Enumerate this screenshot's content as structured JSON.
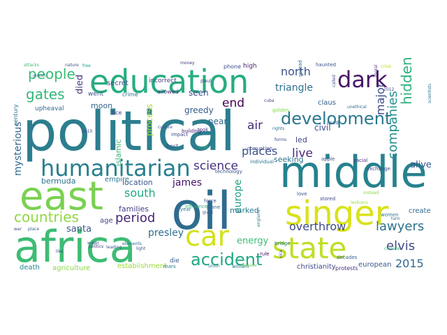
{
  "words": [
    {
      "text": "political",
      "color": "#2c7e8e"
    },
    {
      "text": "middle",
      "color": "#26828e"
    },
    {
      "text": "east",
      "color": "#7ad151"
    },
    {
      "text": "oil",
      "color": "#2f6c8e"
    },
    {
      "text": "africa",
      "color": "#3dbc74"
    },
    {
      "text": "education",
      "color": "#27ad81"
    },
    {
      "text": "singer",
      "color": "#d8e219"
    },
    {
      "text": "state",
      "color": "#bddf26"
    },
    {
      "text": "car",
      "color": "#d2e21b"
    },
    {
      "text": "humanitarian",
      "color": "#277f8e"
    },
    {
      "text": "dark",
      "color": "#481668"
    },
    {
      "text": "development",
      "color": "#2a788e"
    },
    {
      "text": "accident",
      "color": "#21a685"
    },
    {
      "text": "people",
      "color": "#3aba76"
    },
    {
      "text": "gates",
      "color": "#34b679"
    },
    {
      "text": "countries",
      "color": "#90d743"
    },
    {
      "text": "science",
      "color": "#46307e"
    },
    {
      "text": "period",
      "color": "#482575"
    },
    {
      "text": "lawyers",
      "color": "#2d718e"
    },
    {
      "text": "elvis",
      "color": "#3f4889"
    },
    {
      "text": "2015",
      "color": "#31688e"
    },
    {
      "text": "north",
      "color": "#3b528b"
    },
    {
      "text": "hidden",
      "color": "#2db27d"
    },
    {
      "text": "companies",
      "color": "#21918c"
    },
    {
      "text": "overthrow",
      "color": "#3e4a89"
    },
    {
      "text": "end",
      "color": "#440154"
    },
    {
      "text": "air",
      "color": "#472d7b"
    },
    {
      "text": "live",
      "color": "#482979"
    },
    {
      "text": "places",
      "color": "#3b528b"
    },
    {
      "text": "triangle",
      "color": "#2c728e"
    },
    {
      "text": "major",
      "color": "#3e4989"
    },
    {
      "text": "james",
      "color": "#471164"
    },
    {
      "text": "south",
      "color": "#22a884"
    },
    {
      "text": "presley",
      "color": "#2e6e8e"
    },
    {
      "text": "santa",
      "color": "#39568c"
    },
    {
      "text": "energy",
      "color": "#3dbc74"
    },
    {
      "text": "europe",
      "color": "#1fa187"
    },
    {
      "text": "mysterious",
      "color": "#31688e"
    },
    {
      "text": "bermuda",
      "color": "#2c728e"
    },
    {
      "text": "died",
      "color": "#453781"
    },
    {
      "text": "moon",
      "color": "#33638d"
    },
    {
      "text": "families",
      "color": "#433e85"
    },
    {
      "text": "location",
      "color": "#39558c"
    },
    {
      "text": "process",
      "color": "#a5db36"
    },
    {
      "text": "seeking",
      "color": "#2d708e"
    },
    {
      "text": "near",
      "color": "#30698e"
    },
    {
      "text": "seen",
      "color": "#3c508b"
    },
    {
      "text": "greedy",
      "color": "#365d8d"
    },
    {
      "text": "civil",
      "color": "#3e4c8a"
    },
    {
      "text": "alive",
      "color": "#38598c"
    },
    {
      "text": "create",
      "color": "#31688e"
    },
    {
      "text": "marked",
      "color": "#2a788e"
    },
    {
      "text": "led",
      "color": "#414487"
    },
    {
      "text": "islamic",
      "color": "#35b779"
    },
    {
      "text": "empire",
      "color": "#2a788e"
    },
    {
      "text": "age",
      "color": "#414487"
    },
    {
      "text": "death",
      "color": "#25848e"
    },
    {
      "text": "agriculture",
      "color": "#8fd744"
    },
    {
      "text": "establishment",
      "color": "#9bd93c"
    },
    {
      "text": "christianity",
      "color": "#3f4788"
    },
    {
      "text": "european",
      "color": "#38598c"
    },
    {
      "text": "secret",
      "color": "#3e4989"
    },
    {
      "text": "incorrect",
      "color": "#433d84"
    },
    {
      "text": "went",
      "color": "#3a548c"
    },
    {
      "text": "upheaval",
      "color": "#31688e"
    },
    {
      "text": "century",
      "color": "#2a788e"
    },
    {
      "text": "bce",
      "color": "#414487"
    },
    {
      "text": "crime",
      "color": "#2e6f8e"
    },
    {
      "text": "allowed",
      "color": "#46337e"
    },
    {
      "text": "claus",
      "color": "#34618d"
    },
    {
      "text": "high",
      "color": "#481a6c"
    },
    {
      "text": "phone",
      "color": "#3b528b"
    },
    {
      "text": "money",
      "color": "#46327e"
    },
    {
      "text": "haunted",
      "color": "#3b518b"
    },
    {
      "text": "called",
      "color": "#3e4a89"
    },
    {
      "text": "crisis",
      "color": "#b5de2b"
    },
    {
      "text": "attacks",
      "color": "#3dbc74"
    },
    {
      "text": "nature",
      "color": "#3c508b"
    },
    {
      "text": "free",
      "color": "#1f9e89"
    },
    {
      "text": "impact",
      "color": "#3e4a89"
    },
    {
      "text": "building",
      "color": "#481c6e"
    },
    {
      "text": "took",
      "color": "#46307e"
    },
    {
      "text": "best",
      "color": "#3a548c"
    },
    {
      "text": "year",
      "color": "#2c738e"
    },
    {
      "text": "die",
      "color": "#35608d"
    },
    {
      "text": "mars",
      "color": "#2a778e"
    },
    {
      "text": "rule",
      "color": "#46085c"
    },
    {
      "text": "william",
      "color": "#2a788e"
    },
    {
      "text": "protests",
      "color": "#472f7d"
    },
    {
      "text": "decades",
      "color": "#33638d"
    },
    {
      "text": "bridge",
      "color": "#297b8e"
    },
    {
      "text": "climate",
      "color": "#31b57b"
    },
    {
      "text": "love",
      "color": "#3b518b"
    },
    {
      "text": "stored",
      "color": "#3f4788"
    },
    {
      "text": "technology",
      "color": "#3a548c"
    },
    {
      "text": "corruption",
      "color": "#3e4989"
    },
    {
      "text": "individual",
      "color": "#2a788e"
    },
    {
      "text": "influence",
      "color": "#2db27d"
    },
    {
      "text": "politics",
      "color": "#433e85"
    },
    {
      "text": "water",
      "color": "#3a548c"
    },
    {
      "text": "place",
      "color": "#32648e"
    },
    {
      "text": "war",
      "color": "#404588"
    },
    {
      "text": "like",
      "color": "#3b518b"
    },
    {
      "text": "light",
      "color": "#3a548c"
    },
    {
      "text": "forms",
      "color": "#3f4889"
    },
    {
      "text": "rights",
      "color": "#2c718e"
    },
    {
      "text": "golden",
      "color": "#86d549"
    },
    {
      "text": "used",
      "color": "#38588c"
    },
    {
      "text": "racial",
      "color": "#472c7a"
    },
    {
      "text": "apple",
      "color": "#3b528b"
    },
    {
      "text": "exchange",
      "color": "#414487"
    },
    {
      "text": "women",
      "color": "#2a788e"
    },
    {
      "text": "culture",
      "color": "#39568c"
    },
    {
      "text": "paul",
      "color": "#3e4989"
    },
    {
      "text": "cuba",
      "color": "#433e85"
    },
    {
      "text": "giant",
      "color": "#3a548c"
    },
    {
      "text": "plane",
      "color": "#31678e"
    },
    {
      "text": "force",
      "color": "#3b528b"
    },
    {
      "text": "turn",
      "color": "#35608d"
    },
    {
      "text": "spread",
      "color": "#2d708e"
    },
    {
      "text": "moral",
      "color": "#46307e"
    },
    {
      "text": "2012",
      "color": "#3f4889"
    },
    {
      "text": "2010",
      "color": "#3e4989"
    },
    {
      "text": "jewish",
      "color": "#2f6b8e"
    },
    {
      "text": "unethical",
      "color": "#2f6c8e"
    },
    {
      "text": "lesbians",
      "color": "#9dd93b"
    },
    {
      "text": "scientists",
      "color": "#2c728e"
    },
    {
      "text": "england",
      "color": "#2a788e"
    },
    {
      "text": "vice",
      "color": "#3f4889"
    },
    {
      "text": "instead",
      "color": "#8bd646"
    },
    {
      "text": "elements",
      "color": "#2e6e8e"
    },
    {
      "text": "leading",
      "color": "#3b528b"
    },
    {
      "text": "loud",
      "color": "#2fb47c"
    },
    {
      "text": "union",
      "color": "#2a778e"
    },
    {
      "text": "disease",
      "color": "#6ece58"
    }
  ]
}
